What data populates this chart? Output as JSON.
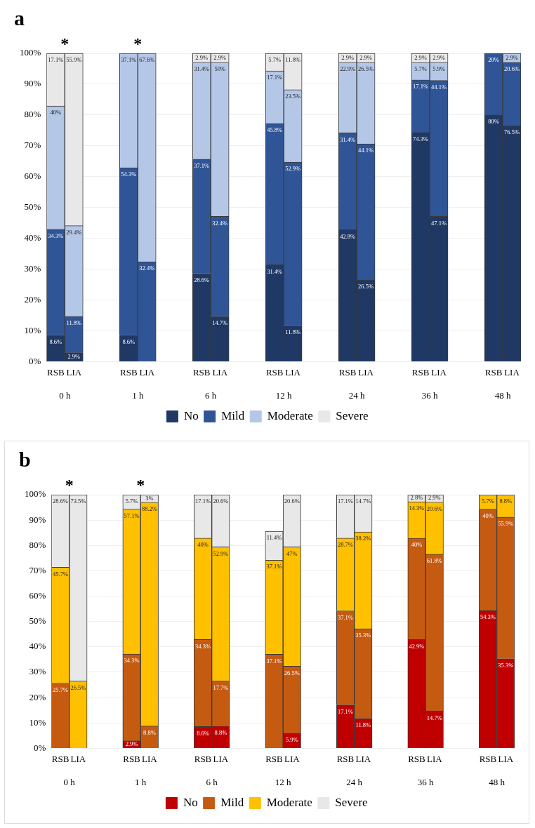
{
  "chart_data": [
    {
      "type": "bar",
      "title": "a",
      "stacked": true,
      "legend": "bottom",
      "grid": "y",
      "categories": [
        "RSB",
        "LIA",
        null,
        null,
        "RSB",
        "LIA",
        null,
        null,
        "RSB",
        "LIA",
        null,
        null,
        "RSB",
        "LIA",
        null,
        null,
        "RSB",
        "LIA",
        null,
        null,
        "RSB",
        "LIA",
        null,
        null,
        "RSB",
        "LIA"
      ],
      "ylim": [
        0,
        100
      ],
      "yticks": [
        {
          "value": 0,
          "label": "0%"
        },
        {
          "value": 10,
          "label": "10%"
        },
        {
          "value": 20,
          "label": "20%"
        },
        {
          "value": 30,
          "label": "30%"
        },
        {
          "value": 40,
          "label": "40%"
        },
        {
          "value": 50,
          "label": "50%"
        },
        {
          "value": 60,
          "label": "60%"
        },
        {
          "value": 70,
          "label": "70%"
        },
        {
          "value": 80,
          "label": "80%"
        },
        {
          "value": 90,
          "label": "90%"
        },
        {
          "value": 100,
          "label": "100%"
        }
      ],
      "series": [
        {
          "name": "No",
          "color": "#1f3864",
          "values": [
            8.6,
            2.9,
            null,
            null,
            8.6,
            null,
            null,
            null,
            28.6,
            14.7,
            null,
            null,
            31.4,
            11.8,
            null,
            null,
            42.8,
            26.5,
            null,
            null,
            74.3,
            47.1,
            null,
            null,
            80,
            76.5
          ],
          "value_labels": [
            "8.6%",
            "2.9%",
            null,
            null,
            "8.6%",
            null,
            null,
            null,
            "28.6%",
            "14.7%",
            null,
            null,
            "31.4%",
            "11.8%",
            null,
            null,
            "42.8%",
            "26.5%",
            null,
            null,
            "74.3%",
            "47.1%",
            null,
            null,
            "80%",
            "76.5%"
          ]
        },
        {
          "name": "Mild",
          "color": "#2f5597",
          "values": [
            34.3,
            11.8,
            null,
            null,
            54.3,
            32.4,
            null,
            null,
            37.1,
            32.4,
            null,
            null,
            45.8,
            52.9,
            null,
            null,
            31.4,
            44.1,
            null,
            null,
            17.1,
            44.1,
            null,
            null,
            20,
            20.6
          ],
          "value_labels": [
            "34.3%",
            "11.8%",
            null,
            null,
            "54.3%",
            "32.4%",
            null,
            null,
            "37.1%",
            "32.4%",
            null,
            null,
            "45.8%",
            "52.9%",
            null,
            null,
            "31.4%",
            "44.1%",
            null,
            null,
            "17.1%",
            "44.1%",
            null,
            null,
            "20%",
            "20.6%"
          ]
        },
        {
          "name": "Moderate",
          "color": "#b4c7e7",
          "values": [
            40,
            29.4,
            null,
            null,
            37.1,
            67.6,
            null,
            null,
            31.4,
            50,
            null,
            null,
            17.1,
            23.5,
            null,
            null,
            22.9,
            26.5,
            null,
            null,
            5.7,
            5.9,
            null,
            null,
            null,
            2.9
          ],
          "value_labels": [
            "40%",
            "29.4%",
            null,
            null,
            "37.1%",
            "67.6%",
            null,
            null,
            "31.4%",
            "50%",
            null,
            null,
            "17.1%",
            "23.5%",
            null,
            null,
            "22.9%",
            "26.5%",
            null,
            null,
            "5.7%",
            "5.9%",
            null,
            null,
            null,
            "2.9%"
          ]
        },
        {
          "name": "Severe",
          "color": "#e8e8e8",
          "values": [
            17.1,
            55.9,
            null,
            null,
            null,
            null,
            null,
            null,
            2.9,
            2.9,
            null,
            null,
            5.7,
            11.8,
            null,
            null,
            2.9,
            2.9,
            null,
            null,
            2.9,
            2.9,
            null,
            null,
            null,
            null
          ],
          "value_labels": [
            "17.1%",
            "55.9%",
            null,
            null,
            null,
            null,
            null,
            null,
            "2.9%",
            "2.9%",
            null,
            null,
            "5.7%",
            "11.8%",
            null,
            null,
            "2.9%",
            "2.9%",
            null,
            null,
            "2.9%",
            "2.9%",
            null,
            null,
            null,
            null
          ]
        }
      ],
      "annotations": [
        "0 h",
        "1 h",
        "6 h",
        "12 h",
        "24 h",
        "36 h",
        "48 h",
        {
          "text": "*",
          "y": 100
        },
        {
          "text": "*",
          "y": 100
        }
      ]
    },
    {
      "type": "bar",
      "title": "b",
      "stacked": true,
      "legend": "bottom",
      "grid": "y",
      "categories": [
        "RSB",
        "LIA",
        null,
        null,
        "RSB",
        "LIA",
        null,
        null,
        "RSB",
        "LIA",
        null,
        null,
        "RSB",
        "LIA",
        null,
        null,
        "RSB",
        "LIA",
        null,
        null,
        "RSB",
        "LIA",
        null,
        null,
        "RSB",
        "LIA"
      ],
      "ylim": [
        0,
        100
      ],
      "yticks": [
        {
          "value": 0,
          "label": "0%"
        },
        {
          "value": 10,
          "label": "10%"
        },
        {
          "value": 20,
          "label": "20%"
        },
        {
          "value": 30,
          "label": "30%"
        },
        {
          "value": 40,
          "label": "40%"
        },
        {
          "value": 50,
          "label": "50%"
        },
        {
          "value": 60,
          "label": "60%"
        },
        {
          "value": 70,
          "label": "70%"
        },
        {
          "value": 80,
          "label": "80%"
        },
        {
          "value": 90,
          "label": "90%"
        },
        {
          "value": 100,
          "label": "100%"
        }
      ],
      "series": [
        {
          "name": "No",
          "color": "#c00000",
          "values": [
            null,
            null,
            null,
            null,
            2.9,
            null,
            null,
            null,
            8.6,
            8.8,
            null,
            null,
            null,
            5.9,
            null,
            null,
            17.1,
            11.8,
            null,
            null,
            42.9,
            14.7,
            null,
            null,
            54.3,
            35.3
          ],
          "value_labels": [
            null,
            null,
            null,
            null,
            "2.9%",
            null,
            null,
            null,
            "8.6%",
            "8.8%",
            null,
            null,
            null,
            "5.9%",
            null,
            null,
            "17.1%",
            "11.8%",
            null,
            null,
            "42.9%",
            "14.7%",
            null,
            null,
            "54.3%",
            "35.3%"
          ]
        },
        {
          "name": "Mild",
          "color": "#c55a11",
          "values": [
            25.7,
            null,
            null,
            null,
            34.3,
            8.8,
            null,
            null,
            34.3,
            17.7,
            null,
            null,
            37.1,
            26.5,
            null,
            null,
            37.1,
            35.3,
            null,
            null,
            40,
            61.8,
            null,
            null,
            40,
            55.9
          ],
          "value_labels": [
            "25.7%",
            null,
            null,
            null,
            "34.3%",
            "8.8%",
            null,
            null,
            "34.3%",
            "17.7%",
            null,
            null,
            "37.1%",
            "26.5%",
            null,
            null,
            "37.1%",
            "35.3%",
            null,
            null,
            "40%",
            "61.8%",
            null,
            null,
            "40%",
            "55.9%"
          ]
        },
        {
          "name": "Moderate",
          "color": "#ffc000",
          "values": [
            45.7,
            26.5,
            null,
            null,
            57.1,
            88.2,
            null,
            null,
            40,
            52.9,
            null,
            null,
            37.1,
            47,
            null,
            null,
            28.7,
            38.2,
            null,
            null,
            14.3,
            20.6,
            null,
            null,
            5.7,
            8.8
          ],
          "value_labels": [
            "45.7%",
            "26.5%",
            null,
            null,
            "57.1%",
            "88.2%",
            null,
            null,
            "40%",
            "52.9%",
            null,
            null,
            "37.1%",
            "47%",
            null,
            null,
            "28.7%",
            "38.2%",
            null,
            null,
            "14.3%",
            "20.6%",
            null,
            null,
            "5.7%",
            "8.8%"
          ]
        },
        {
          "name": "Severe",
          "color": "#e8e8e8",
          "values": [
            28.6,
            73.5,
            null,
            null,
            5.7,
            3,
            null,
            null,
            17.1,
            20.6,
            null,
            null,
            11.4,
            20.6,
            null,
            null,
            17.1,
            14.7,
            null,
            null,
            2.8,
            2.9,
            null,
            null,
            null,
            null
          ],
          "value_labels": [
            "28.6%",
            "73.5%",
            null,
            null,
            "5.7%",
            "3%",
            null,
            null,
            "17.1%",
            "20.6%",
            null,
            null,
            "11.4%",
            "20.6%",
            null,
            null,
            "17.1%",
            "14.7%",
            null,
            null,
            "2.8%",
            "2.9%",
            null,
            null,
            null,
            null
          ]
        }
      ],
      "annotations": [
        "0 h",
        "1 h",
        "6 h",
        "12 h",
        "24 h",
        "36 h",
        "48 h",
        {
          "text": "*",
          "y": 100
        },
        {
          "text": "*",
          "y": 100
        }
      ]
    }
  ]
}
